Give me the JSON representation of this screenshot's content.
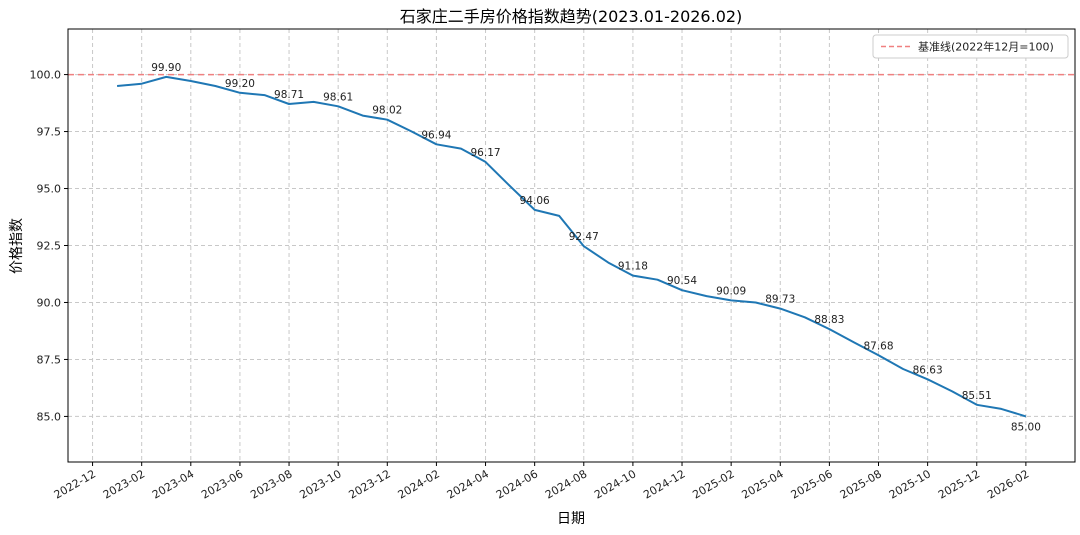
{
  "chart_data": {
    "type": "line",
    "title": "石家庄二手房价格指数趋势(2023.01-2026.02)",
    "xlabel": "日期",
    "ylabel": "价格指数",
    "ylim": [
      83.0,
      102.0
    ],
    "yticks": [
      85.0,
      87.5,
      90.0,
      92.5,
      95.0,
      97.5,
      100.0
    ],
    "ytick_labels": [
      "85.0",
      "87.5",
      "90.0",
      "92.5",
      "95.0",
      "97.5",
      "100.0"
    ],
    "xrange": [
      "2022-11",
      "2026-04"
    ],
    "xticks": [
      "2022-12",
      "2023-02",
      "2023-04",
      "2023-06",
      "2023-08",
      "2023-10",
      "2023-12",
      "2024-02",
      "2024-04",
      "2024-06",
      "2024-08",
      "2024-10",
      "2024-12",
      "2025-02",
      "2025-04",
      "2025-06",
      "2025-08",
      "2025-10",
      "2025-12",
      "2026-02"
    ],
    "grid": true,
    "legend_position": "top-right",
    "series": [
      {
        "name": "价格指数",
        "color": "#1f77b4",
        "x": [
          "2023-01",
          "2023-02",
          "2023-03",
          "2023-04",
          "2023-05",
          "2023-06",
          "2023-07",
          "2023-08",
          "2023-09",
          "2023-10",
          "2023-11",
          "2023-12",
          "2024-01",
          "2024-02",
          "2024-03",
          "2024-04",
          "2024-05",
          "2024-06",
          "2024-07",
          "2024-08",
          "2024-09",
          "2024-10",
          "2024-11",
          "2024-12",
          "2025-01",
          "2025-02",
          "2025-03",
          "2025-04",
          "2025-05",
          "2025-06",
          "2025-07",
          "2025-08",
          "2025-09",
          "2025-10",
          "2025-11",
          "2025-12",
          "2026-01",
          "2026-02"
        ],
        "values": [
          99.5,
          99.6,
          99.9,
          99.72,
          99.5,
          99.2,
          99.1,
          98.71,
          98.8,
          98.61,
          98.2,
          98.02,
          97.5,
          96.94,
          96.75,
          96.17,
          95.1,
          94.06,
          93.8,
          92.47,
          91.75,
          91.18,
          91.0,
          90.54,
          90.28,
          90.09,
          90.0,
          89.73,
          89.35,
          88.83,
          88.25,
          87.68,
          87.08,
          86.63,
          86.1,
          85.51,
          85.33,
          85.0
        ]
      }
    ],
    "data_labels": [
      {
        "x": "2023-03",
        "value": 99.9,
        "text": "99.90",
        "placement": "above"
      },
      {
        "x": "2023-06",
        "value": 99.2,
        "text": "99.20",
        "placement": "above"
      },
      {
        "x": "2023-08",
        "value": 98.71,
        "text": "98.71",
        "placement": "above"
      },
      {
        "x": "2023-10",
        "value": 98.61,
        "text": "98.61",
        "placement": "above"
      },
      {
        "x": "2023-12",
        "value": 98.02,
        "text": "98.02",
        "placement": "above"
      },
      {
        "x": "2024-02",
        "value": 96.94,
        "text": "96.94",
        "placement": "above"
      },
      {
        "x": "2024-04",
        "value": 96.17,
        "text": "96.17",
        "placement": "above"
      },
      {
        "x": "2024-06",
        "value": 94.06,
        "text": "94.06",
        "placement": "above"
      },
      {
        "x": "2024-08",
        "value": 92.47,
        "text": "92.47",
        "placement": "above"
      },
      {
        "x": "2024-10",
        "value": 91.18,
        "text": "91.18",
        "placement": "above"
      },
      {
        "x": "2024-12",
        "value": 90.54,
        "text": "90.54",
        "placement": "above"
      },
      {
        "x": "2025-02",
        "value": 90.09,
        "text": "90.09",
        "placement": "above"
      },
      {
        "x": "2025-04",
        "value": 89.73,
        "text": "89.73",
        "placement": "above"
      },
      {
        "x": "2025-06",
        "value": 88.83,
        "text": "88.83",
        "placement": "above"
      },
      {
        "x": "2025-08",
        "value": 87.68,
        "text": "87.68",
        "placement": "above"
      },
      {
        "x": "2025-10",
        "value": 86.63,
        "text": "86.63",
        "placement": "above"
      },
      {
        "x": "2025-12",
        "value": 85.51,
        "text": "85.51",
        "placement": "above"
      },
      {
        "x": "2026-02",
        "value": 85.0,
        "text": "85.00",
        "placement": "below"
      }
    ],
    "reference_line": {
      "value": 100.0,
      "label": "基准线(2022年12月=100)",
      "color": "#f08080",
      "style": "dashed"
    }
  }
}
